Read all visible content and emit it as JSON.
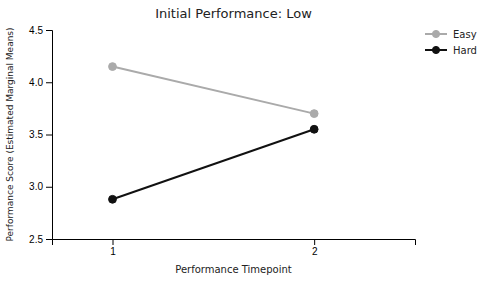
{
  "chart_data": {
    "type": "line",
    "title": "Initial Performance: Low",
    "xlabel": "Performance Timepoint",
    "ylabel": "Performance Score (Estimated Marginal Means)",
    "x": [
      1,
      2
    ],
    "xlim": [
      0.7,
      2.5
    ],
    "xticks": [
      1,
      2
    ],
    "ylim": [
      2.5,
      4.5
    ],
    "yticks": [
      2.5,
      {
        "value": 3.0,
        "label": "3.0"
      },
      3.5,
      {
        "value": 4.0,
        "label": "4.0"
      },
      4.5
    ],
    "series": [
      {
        "name": "Easy",
        "color": "#aaaaaa",
        "values": [
          4.15,
          3.7
        ]
      },
      {
        "name": "Hard",
        "color": "#111111",
        "values": [
          2.88,
          3.55
        ]
      }
    ],
    "marker": "circle",
    "legend": "right",
    "grid": false
  }
}
